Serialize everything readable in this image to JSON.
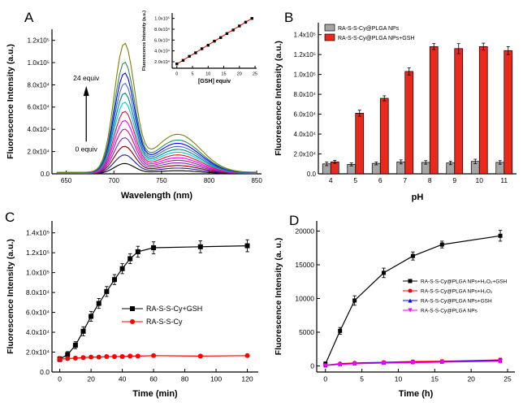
{
  "panels": {
    "a": "A",
    "b": "B",
    "c": "C",
    "d": "D"
  },
  "chart_data": [
    {
      "id": "A",
      "type": "line",
      "subtype": "emission-spectra",
      "xlabel": "Wavelength (nm)",
      "ylabel": "Fluorescence Intensity (a.u.)",
      "xlim": [
        635,
        855
      ],
      "ylim": [
        0,
        130000
      ],
      "x_ticks": [
        650,
        700,
        750,
        800,
        850
      ],
      "y_ticks": [
        {
          "v": 0,
          "l": "0.0"
        },
        {
          "v": 20000,
          "l": "2.0x10⁴"
        },
        {
          "v": 40000,
          "l": "4.0x10⁴"
        },
        {
          "v": 60000,
          "l": "6.0x10⁴"
        },
        {
          "v": 80000,
          "l": "8.0x10⁴"
        },
        {
          "v": 100000,
          "l": "1.0x10⁵"
        },
        {
          "v": 120000,
          "l": "1.2x10⁵"
        }
      ],
      "peak_nm": 711,
      "shoulder_nm": 767,
      "gsh_equiv": [
        0,
        2,
        4,
        6,
        8,
        10,
        12,
        14,
        16,
        18,
        20,
        22,
        24
      ],
      "series_peaks": [
        9000,
        16500,
        24000,
        31500,
        39000,
        46500,
        54500,
        62500,
        70500,
        79000,
        88000,
        97500,
        114000
      ],
      "series_colors": [
        "#000000",
        "#1c1ca8",
        "#8b0000",
        "#7d26cd",
        "#c71585",
        "#ff00ff",
        "#dc143c",
        "#00ced1",
        "#008080",
        "#4169e1",
        "#0000ff",
        "#2e8b57",
        "#808000"
      ],
      "annotation_top": "24 equiv",
      "annotation_bottom": "0 equiv"
    },
    {
      "id": "A-inset",
      "type": "scatter",
      "xlabel": "[GSH] equiv",
      "ylabel": "Fluorescence Intensity (a.u.)",
      "xlim": [
        -1.5,
        25.5
      ],
      "ylim": [
        8000,
        110000
      ],
      "x_ticks": [
        0,
        5,
        10,
        15,
        20,
        25
      ],
      "y_ticks": [
        {
          "v": 20000,
          "l": "2.0x10⁴"
        },
        {
          "v": 40000,
          "l": "4.0x10⁴"
        },
        {
          "v": 60000,
          "l": "6.0x10⁴"
        },
        {
          "v": 80000,
          "l": "8.0x10⁴"
        },
        {
          "v": 100000,
          "l": "1.0x10⁵"
        }
      ],
      "x": [
        0,
        2,
        4,
        6,
        8,
        10,
        12,
        14,
        16,
        18,
        20,
        22,
        24
      ],
      "y": [
        16000,
        22500,
        30000,
        36500,
        44000,
        50500,
        58000,
        64500,
        72000,
        78500,
        86000,
        93000,
        100000
      ],
      "fit_color": "#ff0000",
      "fit_y": [
        15800,
        100200
      ]
    },
    {
      "id": "B",
      "type": "bar",
      "xlabel": "pH",
      "ylabel": "Fluorescence Intensity (a.u.)",
      "categories": [
        "4",
        "5",
        "6",
        "7",
        "8",
        "9",
        "10",
        "11"
      ],
      "ylim": [
        0,
        152000
      ],
      "y_ticks": [
        {
          "v": 0,
          "l": "0.0"
        },
        {
          "v": 20000,
          "l": "2.0x10⁴"
        },
        {
          "v": 40000,
          "l": "4.0x10⁴"
        },
        {
          "v": 60000,
          "l": "6.0x10⁴"
        },
        {
          "v": 80000,
          "l": "8.0x10⁴"
        },
        {
          "v": 100000,
          "l": "1.0x10⁵"
        },
        {
          "v": 120000,
          "l": "1.2x10⁵"
        },
        {
          "v": 140000,
          "l": "1.4x10⁵"
        }
      ],
      "series": [
        {
          "name": "RA-S-S-Cy@PLGA NPs",
          "color": "#a6a6a6",
          "values": [
            10000,
            9500,
            10500,
            12000,
            11500,
            11000,
            12500,
            11500
          ],
          "errors": [
            1800,
            1500,
            1500,
            2000,
            1800,
            1800,
            2200,
            1800
          ]
        },
        {
          "name": "RA-S-S-Cy@PLGA NPs+GSH",
          "color": "#e8291c",
          "values": [
            12000,
            61000,
            76000,
            103000,
            128000,
            126000,
            128000,
            124000
          ],
          "errors": [
            1500,
            3000,
            2500,
            3500,
            3000,
            5000,
            3500,
            4000
          ]
        }
      ]
    },
    {
      "id": "C",
      "type": "line",
      "xlabel": "Time (min)",
      "ylabel": "Fluorescence Intensity (a.u.)",
      "xlim": [
        -5,
        127
      ],
      "ylim": [
        0,
        152000
      ],
      "x_ticks": [
        0,
        20,
        40,
        60,
        80,
        100,
        120
      ],
      "y_ticks": [
        {
          "v": 0,
          "l": "0.0"
        },
        {
          "v": 20000,
          "l": "2.0x10⁴"
        },
        {
          "v": 40000,
          "l": "4.0x10⁴"
        },
        {
          "v": 60000,
          "l": "6.0x10⁴"
        },
        {
          "v": 80000,
          "l": "8.0x10⁴"
        },
        {
          "v": 100000,
          "l": "1.0x10⁵"
        },
        {
          "v": 120000,
          "l": "1.2x10⁵"
        },
        {
          "v": 140000,
          "l": "1.4x10⁵"
        }
      ],
      "series": [
        {
          "name": "RA-S-S-Cy+GSH",
          "color": "#000000",
          "marker": "square",
          "x": [
            0,
            5,
            10,
            15,
            20,
            25,
            30,
            35,
            40,
            45,
            50,
            60,
            90,
            120
          ],
          "y": [
            13000,
            17500,
            27000,
            41000,
            56000,
            69000,
            81000,
            93000,
            104000,
            114000,
            121000,
            125000,
            126000,
            127000
          ],
          "errors": [
            2500,
            3000,
            3500,
            4500,
            5000,
            5000,
            5000,
            5000,
            5000,
            5000,
            5500,
            6000,
            6000,
            6000
          ]
        },
        {
          "name": "RA-S-S-Cy",
          "color": "#ff0000",
          "marker": "circle",
          "x": [
            0,
            5,
            10,
            15,
            20,
            25,
            30,
            35,
            40,
            45,
            50,
            60,
            90,
            120
          ],
          "y": [
            13000,
            13500,
            14000,
            14500,
            15000,
            15000,
            15500,
            15500,
            15500,
            16000,
            16000,
            16500,
            16000,
            16500
          ],
          "errors": [
            1500,
            1500,
            1500,
            1500,
            1500,
            1500,
            1500,
            1500,
            1500,
            1500,
            1500,
            1500,
            1500,
            1500
          ]
        }
      ]
    },
    {
      "id": "D",
      "type": "line",
      "xlabel": "Time (h)",
      "ylabel": "Fluorescence Intensity (a. u.)",
      "xlim": [
        -1.2,
        26
      ],
      "ylim": [
        -900,
        21500
      ],
      "x_ticks": [
        0,
        5,
        10,
        15,
        20,
        25
      ],
      "y_ticks": [
        {
          "v": 0,
          "l": "0"
        },
        {
          "v": 5000,
          "l": "5000"
        },
        {
          "v": 10000,
          "l": "10000"
        },
        {
          "v": 15000,
          "l": "15000"
        },
        {
          "v": 20000,
          "l": "20000"
        }
      ],
      "series": [
        {
          "name": "RA-S-S-Cy@PLGA NPs+H₂O₂+GSH",
          "color": "#000000",
          "marker": "square",
          "x": [
            0,
            2,
            4,
            8,
            12,
            16,
            24
          ],
          "y": [
            300,
            5200,
            9700,
            13800,
            16300,
            18000,
            19300
          ],
          "errors": [
            300,
            500,
            700,
            700,
            600,
            500,
            800
          ]
        },
        {
          "name": "RA-S-S-Cy@PLGA NPs+H₂O₂",
          "color": "#ff0000",
          "marker": "circle",
          "x": [
            0,
            2,
            4,
            8,
            12,
            16,
            24
          ],
          "y": [
            100,
            350,
            450,
            550,
            650,
            700,
            900
          ],
          "errors": [
            150,
            150,
            150,
            200,
            200,
            200,
            250
          ]
        },
        {
          "name": "RA-S-S-Cy@PLGA NPs+GSH",
          "color": "#0000ff",
          "marker": "triangle-up",
          "x": [
            0,
            2,
            4,
            8,
            12,
            16,
            24
          ],
          "y": [
            80,
            280,
            380,
            480,
            560,
            620,
            800
          ],
          "errors": [
            120,
            150,
            150,
            180,
            180,
            180,
            220
          ]
        },
        {
          "name": "RA-S-S-Cy@PLGA NPs",
          "color": "#ff00ff",
          "marker": "triangle-down",
          "x": [
            0,
            2,
            4,
            8,
            12,
            16,
            24
          ],
          "y": [
            60,
            220,
            320,
            420,
            480,
            560,
            700
          ],
          "errors": [
            100,
            130,
            150,
            160,
            160,
            170,
            200
          ]
        }
      ]
    }
  ]
}
